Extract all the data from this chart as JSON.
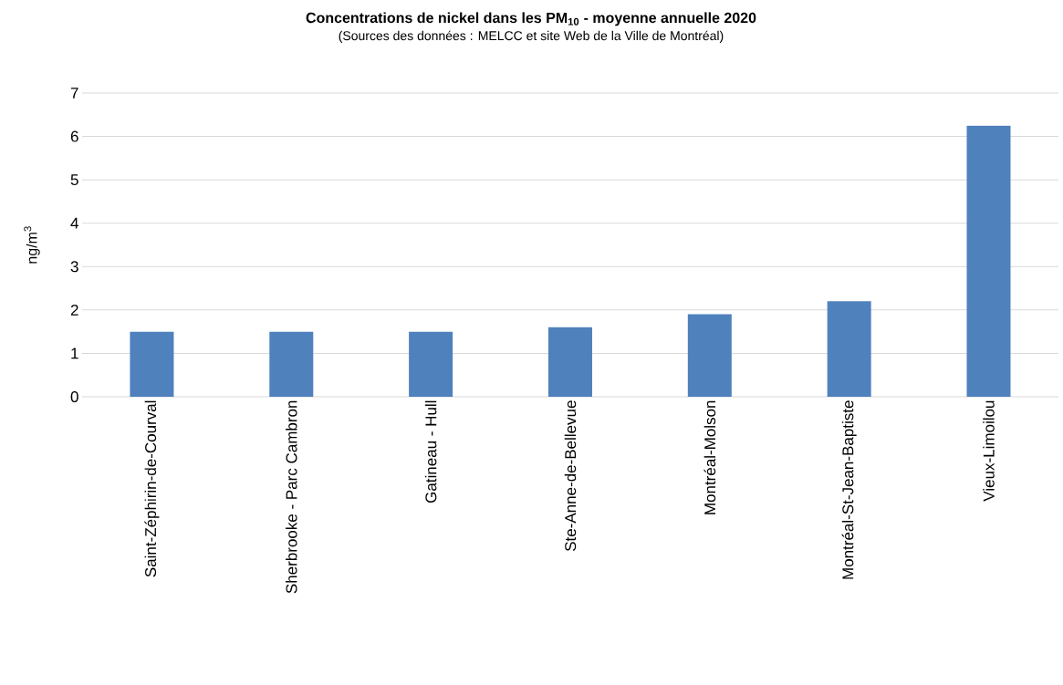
{
  "chart_data": {
    "type": "bar",
    "title": "Concentrations de nickel dans les PM$_{10}$ - moyenne annuelle 2020",
    "subtitle": "(Sources des données : MELCC et site Web de la Ville de Montréal)",
    "ylabel": "ng/m$^{3}$",
    "categories": [
      "Saint-Zéphirin-de-Courval",
      "Sherbrooke - Parc Cambron",
      "Gatineau - Hull",
      "Ste-Anne-de-Bellevue",
      "Montréal-Molson",
      "Montréal-St-Jean-Baptiste",
      "Vieux-Limoilou"
    ],
    "values": [
      1.5,
      1.5,
      1.5,
      1.6,
      1.9,
      2.2,
      6.25
    ],
    "color": "#4f81bd",
    "ylim": [
      0,
      7
    ],
    "yticks": [
      0,
      1,
      2,
      3,
      4,
      5,
      6,
      7
    ],
    "grid": "y"
  }
}
